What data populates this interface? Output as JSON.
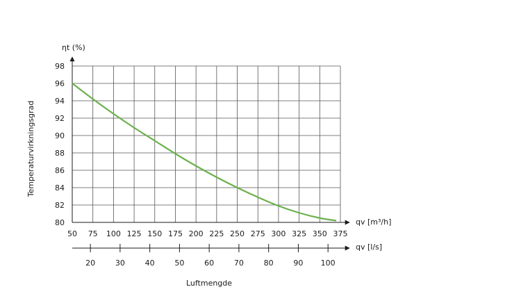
{
  "chart_data": {
    "type": "line",
    "ylabel": "Temperaturvirkningsgrad",
    "y_axis_symbol": "ηt (%)",
    "xlabel": "Luftmengde",
    "x_axis_m3h": {
      "label": "qv [m³/h]",
      "range": [
        50,
        375
      ],
      "ticks": [
        50,
        75,
        100,
        125,
        150,
        175,
        200,
        225,
        250,
        275,
        300,
        325,
        350,
        375
      ]
    },
    "x_axis_ls": {
      "label": "qv [l/s]",
      "ticks": [
        20,
        30,
        40,
        50,
        60,
        70,
        80,
        90,
        100
      ]
    },
    "ylim": [
      80,
      98
    ],
    "yticks": [
      80,
      82,
      84,
      86,
      88,
      90,
      92,
      94,
      96,
      98
    ],
    "grid": true,
    "series": [
      {
        "color": "#6ab04c",
        "x": [
          50,
          75,
          100,
          125,
          150,
          175,
          200,
          225,
          250,
          275,
          300,
          325,
          350,
          370
        ],
        "y": [
          96.0,
          94.2,
          92.5,
          90.9,
          89.4,
          87.9,
          86.5,
          85.2,
          84.0,
          82.9,
          81.9,
          81.1,
          80.5,
          80.2
        ]
      }
    ]
  }
}
